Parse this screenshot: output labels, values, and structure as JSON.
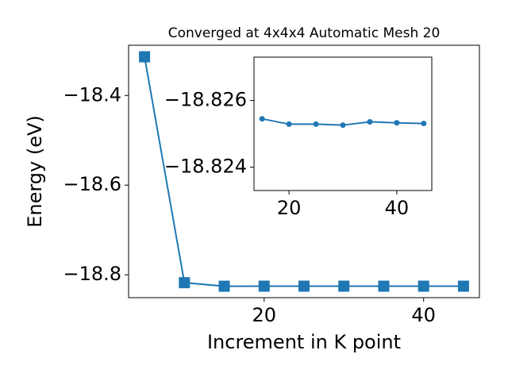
{
  "chart_data": [
    {
      "type": "line",
      "title": "Converged at 4x4x4 Automatic Mesh 20",
      "xlabel": "Increment in K point",
      "ylabel": "Energy (eV)",
      "x": [
        5,
        10,
        15,
        20,
        25,
        30,
        35,
        40,
        45
      ],
      "series": [
        {
          "color": "#1f77b4",
          "marker": "square",
          "values": [
            -18.3137,
            -18.8176,
            -18.8255,
            -18.8254,
            -18.8254,
            -18.8254,
            -18.8254,
            -18.8254,
            -18.8254
          ]
        }
      ],
      "xlim": [
        3,
        47
      ],
      "xticks": [
        20,
        40
      ],
      "ylim": [
        -18.851,
        -18.288
      ],
      "yticks": [
        {
          "value": -18.8,
          "label": "−18.8"
        },
        {
          "value": -18.6,
          "label": "−18.6"
        },
        {
          "value": -18.4,
          "label": "−18.4"
        }
      ]
    },
    {
      "type": "line",
      "x": [
        15,
        20,
        25,
        30,
        35,
        40,
        45
      ],
      "series": [
        {
          "color": "#1f77b4",
          "marker": "circle",
          "values": [
            -18.82545,
            -18.82529,
            -18.82529,
            -18.82526,
            -18.82536,
            -18.82533,
            -18.82531
          ]
        }
      ],
      "xlim": [
        13.5,
        46.5
      ],
      "xticks": [
        20,
        40
      ],
      "ylim": [
        -18.8233,
        -18.8273
      ],
      "yticks": [
        {
          "value": -18.826,
          "label": "−18.826"
        },
        {
          "value": -18.824,
          "label": "−18.824"
        }
      ]
    }
  ]
}
